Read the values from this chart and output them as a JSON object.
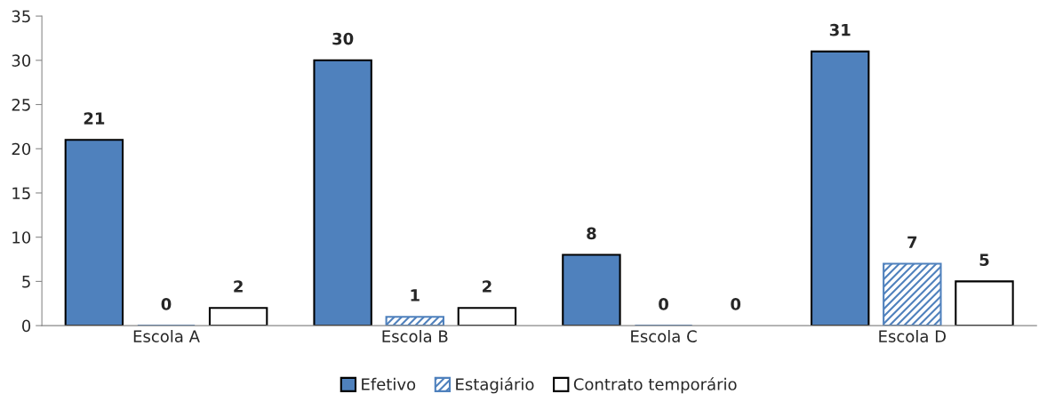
{
  "chart_data": {
    "type": "bar",
    "categories": [
      "Escola A",
      "Escola B",
      "Escola C",
      "Escola D"
    ],
    "series": [
      {
        "name": "Efetivo",
        "color": "#4f81bd",
        "values": [
          21,
          30,
          8,
          31
        ]
      },
      {
        "name": "Estagiário",
        "color": "#4f81bd",
        "values": [
          0,
          1,
          0,
          7
        ]
      },
      {
        "name": "Contrato temporário",
        "color": "#ffffff",
        "values": [
          2,
          2,
          0,
          5
        ]
      }
    ],
    "ylim": [
      0,
      35
    ],
    "yticks": [
      0,
      5,
      10,
      15,
      20,
      25,
      30,
      35
    ],
    "grid": false,
    "legend": "bottom",
    "data_labels": true
  }
}
